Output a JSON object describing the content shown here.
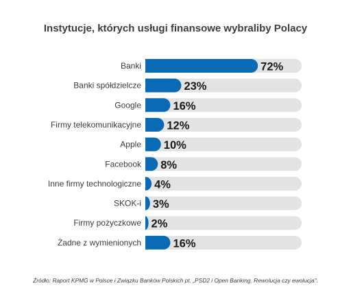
{
  "chart_data": {
    "type": "bar",
    "orientation": "horizontal",
    "title": "Instytucje, których usługi finansowe wybraliby Polacy",
    "categories": [
      "Banki",
      "Banki spółdzielcze",
      "Google",
      "Firmy telekomunikacyjne",
      "Apple",
      "Facebook",
      "Inne firmy technologiczne",
      "SKOK-i",
      "Firmy pożyczkowe",
      "Żadne z wymienionych"
    ],
    "values": [
      72,
      23,
      16,
      12,
      10,
      8,
      4,
      3,
      2,
      16
    ],
    "value_labels": [
      "72%",
      "23%",
      "16%",
      "12%",
      "10%",
      "8%",
      "4%",
      "3%",
      "2%",
      "16%"
    ],
    "unit": "%",
    "xlim": [
      0,
      100
    ],
    "grid": false,
    "legend": "none",
    "source": "Źródło: Raport KPMG w Polsce i Związku Banków Polskich pt. „PSD2 i Open Banking. Rewolucja czy ewolucja\"."
  },
  "colors": {
    "bar": "#0a6ab4",
    "track": "#e3e3e3",
    "label": "#3c3c3c",
    "value": "#1a1a1a"
  }
}
